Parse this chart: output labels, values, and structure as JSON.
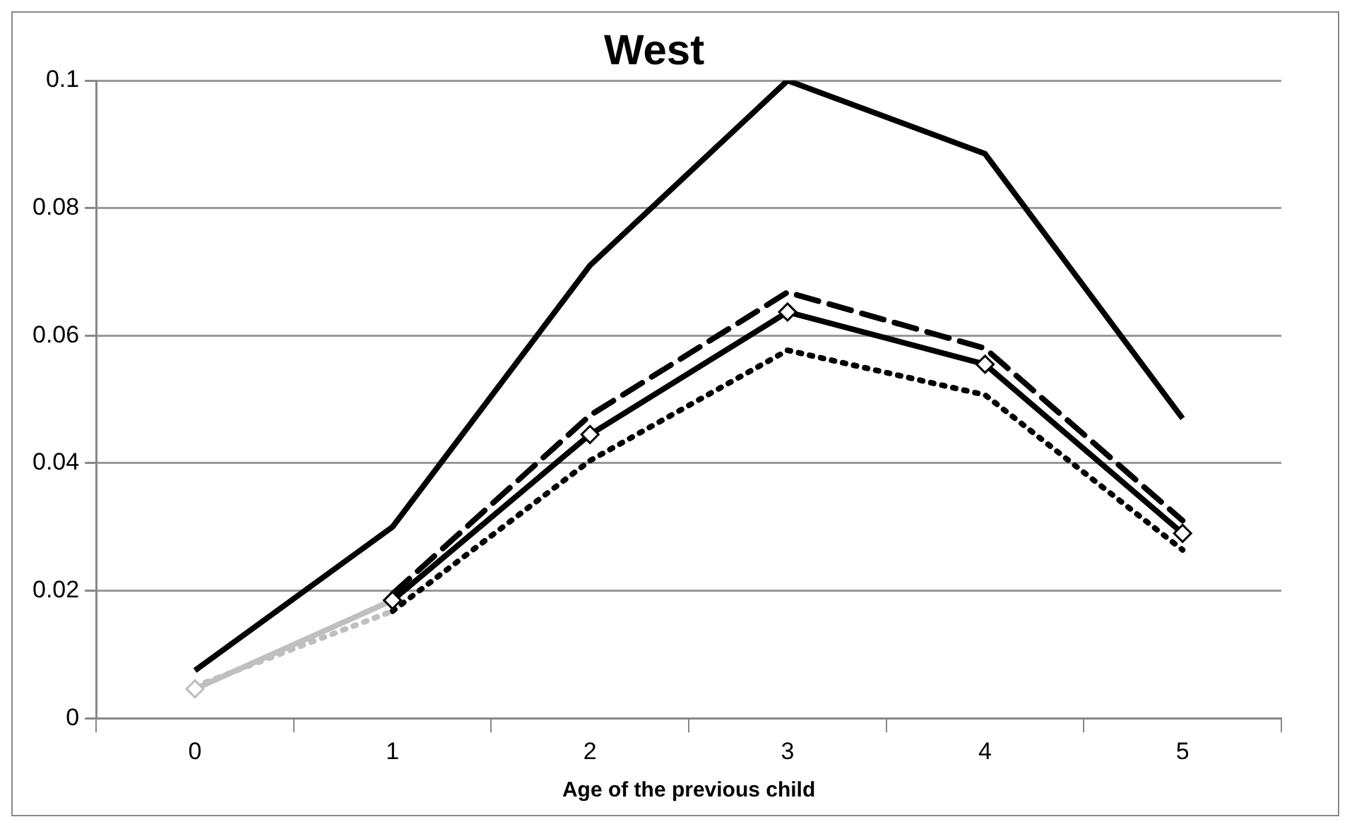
{
  "chart_data": {
    "type": "line",
    "title": "West",
    "xlabel": "Age of the previous child",
    "categories": [
      "0",
      "1",
      "2",
      "3",
      "4",
      "5"
    ],
    "series": [
      {
        "color": "#000000",
        "values": [
          0.0075,
          0.03,
          0.071,
          0.1,
          0.0885,
          0.047
        ],
        "line_style": "solid",
        "marker": "none"
      },
      {
        "color": "#000000",
        "values": [
          null,
          0.0195,
          0.0475,
          0.0668,
          0.058,
          0.031
        ],
        "line_style": "dashed",
        "marker": "none"
      },
      {
        "color": "#000000",
        "values": [
          null,
          0.0168,
          0.0404,
          0.0577,
          0.0507,
          0.0264
        ],
        "line_style": "dotted",
        "marker": "none"
      },
      {
        "color": "#bfbfbf",
        "values": [
          0.005,
          0.0168,
          null,
          null,
          null,
          null
        ],
        "line_style": "dotted",
        "marker": "none"
      },
      {
        "color": "#bfbfbf",
        "values": [
          0.0046,
          0.0185,
          null,
          null,
          null,
          null
        ],
        "line_style": "solid",
        "marker": "diamond"
      },
      {
        "color": "#000000",
        "values": [
          null,
          0.0185,
          0.0445,
          0.0637,
          0.0555,
          0.029
        ],
        "line_style": "solid",
        "marker": "diamond"
      }
    ],
    "ylim": [
      0,
      0.1
    ],
    "yticks": [
      0,
      0.02,
      0.04,
      0.06,
      0.08,
      0.1
    ],
    "grid": "y",
    "legend": false
  }
}
